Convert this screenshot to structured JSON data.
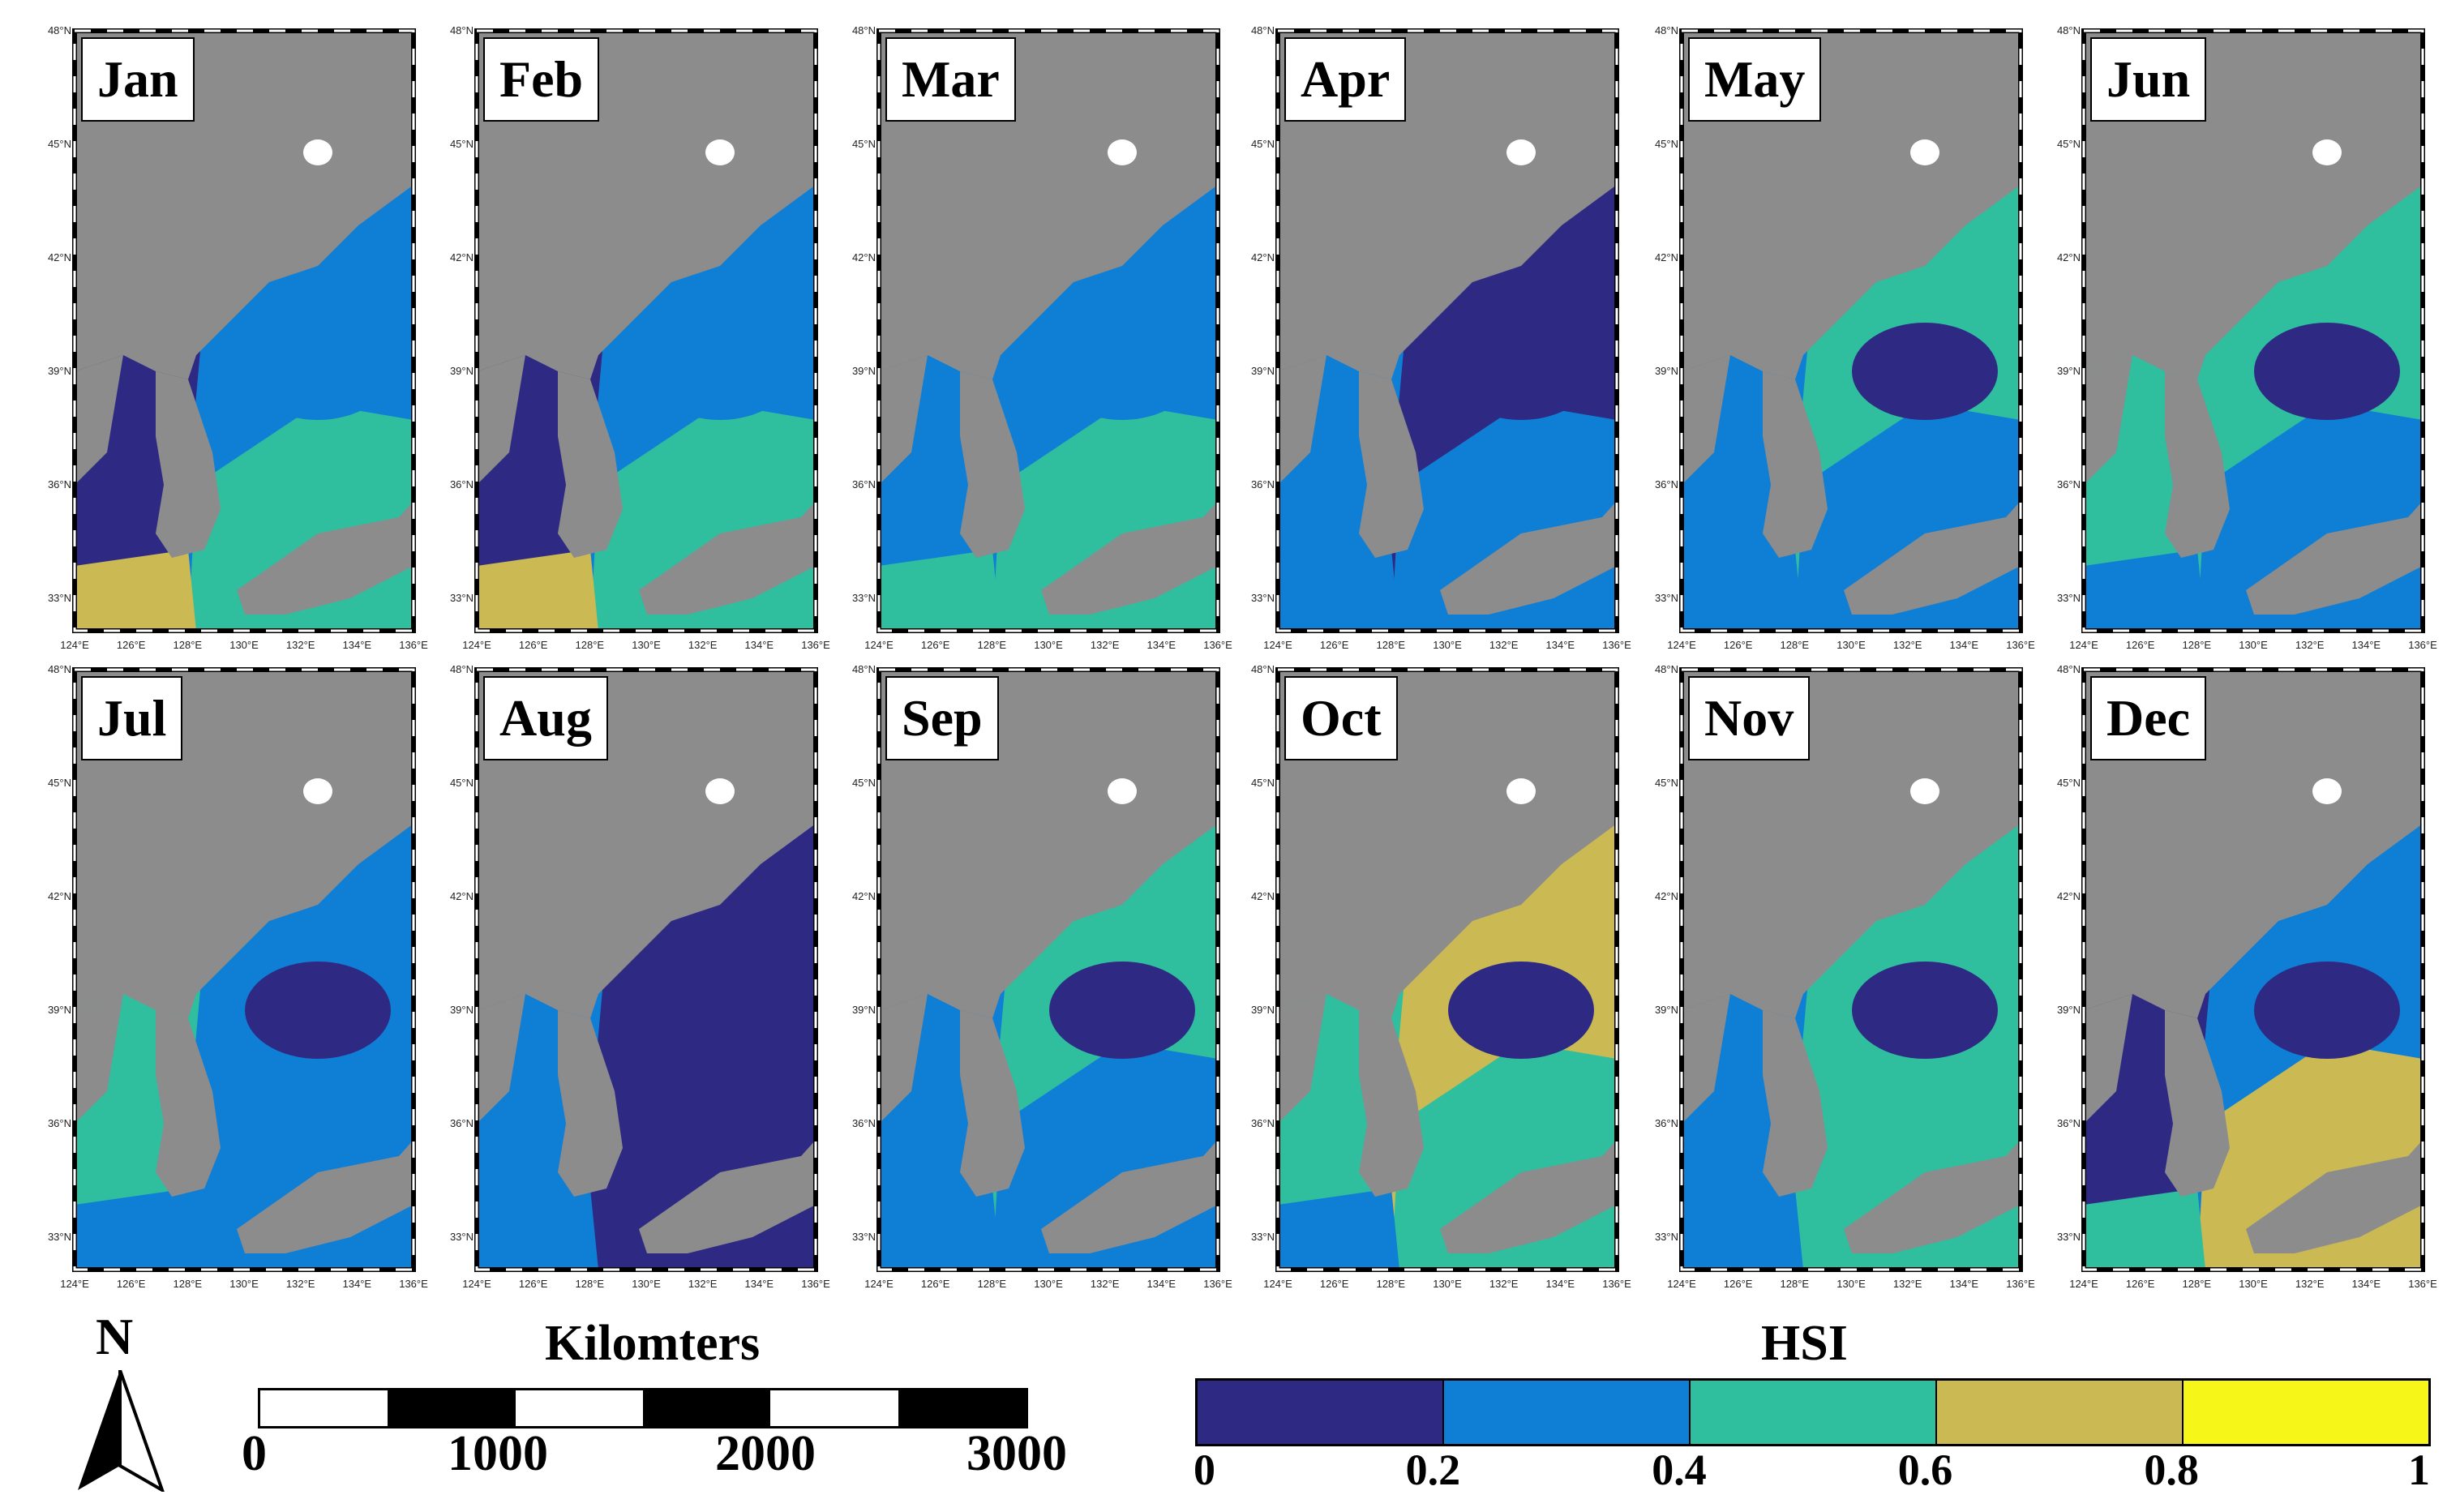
{
  "colors": {
    "land": "#8c8c8c",
    "nodata": "#ffffff",
    "bins": [
      "#2e2a84",
      "#0f7fd6",
      "#2fbf9f",
      "#cbb954",
      "#f6f618"
    ]
  },
  "ticks": {
    "lon": [
      "124°E",
      "126°E",
      "128°E",
      "130°E",
      "132°E",
      "134°E",
      "136°E"
    ],
    "lat": [
      "33°N",
      "36°N",
      "39°N",
      "42°N",
      "45°N",
      "48°N"
    ]
  },
  "months": [
    {
      "label": "Jan",
      "hsi": [
        0.16,
        0.3,
        0.55,
        0.25,
        0.62
      ]
    },
    {
      "label": "Feb",
      "hsi": [
        0.18,
        0.28,
        0.52,
        0.3,
        0.66
      ]
    },
    {
      "label": "Mar",
      "hsi": [
        0.22,
        0.24,
        0.45,
        0.2,
        0.5
      ]
    },
    {
      "label": "Apr",
      "hsi": [
        0.28,
        0.1,
        0.25,
        0.12,
        0.3
      ]
    },
    {
      "label": "May",
      "hsi": [
        0.35,
        0.42,
        0.38,
        0.15,
        0.35
      ]
    },
    {
      "label": "Jun",
      "hsi": [
        0.45,
        0.4,
        0.36,
        0.12,
        0.34
      ]
    },
    {
      "label": "Jul",
      "hsi": [
        0.55,
        0.32,
        0.28,
        0.1,
        0.3
      ]
    },
    {
      "label": "Aug",
      "hsi": [
        0.3,
        0.15,
        0.08,
        0.08,
        0.2
      ]
    },
    {
      "label": "Sep",
      "hsi": [
        0.36,
        0.45,
        0.35,
        0.14,
        0.3
      ]
    },
    {
      "label": "Oct",
      "hsi": [
        0.5,
        0.62,
        0.42,
        0.16,
        0.3
      ]
    },
    {
      "label": "Nov",
      "hsi": [
        0.25,
        0.42,
        0.45,
        0.18,
        0.35
      ]
    },
    {
      "label": "Dec",
      "hsi": [
        0.1,
        0.25,
        0.65,
        0.18,
        0.55
      ]
    }
  ],
  "north_arrow": {
    "label": "N"
  },
  "scale_bar": {
    "title": "Kilomters",
    "labels": [
      "0",
      "1000",
      "2000",
      "3000"
    ]
  },
  "colorbar": {
    "title": "HSI",
    "labels": [
      "0",
      "0.2",
      "0.4",
      "0.6",
      "0.8",
      "1"
    ]
  }
}
